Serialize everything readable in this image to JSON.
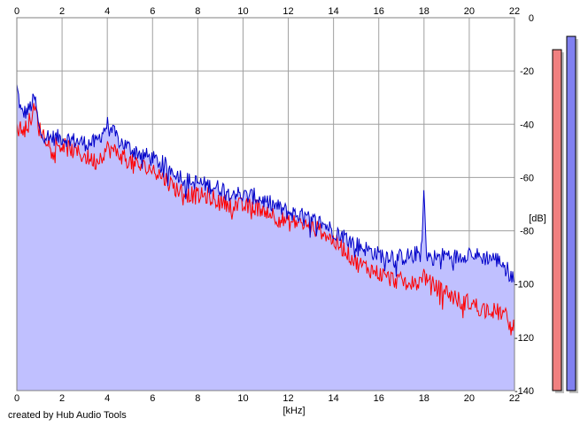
{
  "footer": {
    "credit": "created by Hub Audio Tools"
  },
  "colors": {
    "background": "#ffffff",
    "plot_fill": "#c0c0ff",
    "grid": "#a0a0a0",
    "series_red": "#ff0000",
    "series_blue": "#0000c8",
    "meter_left_fill": "#f08080",
    "meter_right_fill": "#8080f0",
    "meter_shadow": "#c0c0c0"
  },
  "chart_data": {
    "type": "line",
    "title": "",
    "xlabel": "[kHz]",
    "ylabel": "[dB]",
    "xlim": [
      0,
      22
    ],
    "ylim": [
      -140,
      0
    ],
    "x_ticks": [
      0,
      2,
      4,
      6,
      8,
      10,
      12,
      14,
      16,
      18,
      20,
      22
    ],
    "x_tick_labels": [
      "0",
      "2",
      "4",
      "6",
      "8",
      "10",
      "12",
      "14",
      "16",
      "18",
      "20",
      "22"
    ],
    "y_ticks": [
      0,
      -20,
      -40,
      -60,
      -80,
      -100,
      -120,
      -140
    ],
    "y_tick_labels": [
      "0",
      "-20",
      "-40",
      "-60",
      "-80",
      "-100",
      "-120",
      "-140"
    ],
    "grid": true,
    "legend": "none",
    "series": [
      {
        "color": "#ff0000",
        "x": [
          0,
          0.2,
          0.5,
          0.8,
          1.0,
          1.5,
          2.0,
          2.5,
          3.0,
          3.5,
          4.0,
          4.5,
          5.0,
          5.5,
          6.0,
          6.5,
          7.0,
          7.5,
          8.0,
          8.5,
          9.0,
          9.5,
          10.0,
          10.5,
          11.0,
          11.5,
          12.0,
          12.5,
          13.0,
          13.5,
          14.0,
          14.5,
          15.0,
          15.5,
          16.0,
          16.5,
          17.0,
          17.5,
          17.9,
          18.0,
          18.1,
          18.5,
          19.0,
          19.5,
          20.0,
          20.5,
          21.0,
          21.5,
          22.0
        ],
        "y": [
          -41,
          -42,
          -40,
          -34,
          -42,
          -47,
          -48,
          -50,
          -52,
          -54,
          -49,
          -51,
          -54,
          -56,
          -57,
          -60,
          -64,
          -66,
          -67,
          -67,
          -69,
          -70,
          -71,
          -71,
          -72,
          -75,
          -77,
          -77,
          -79,
          -80,
          -84,
          -87,
          -92,
          -94,
          -96,
          -98,
          -99,
          -100,
          -99,
          -94,
          -99,
          -101,
          -103,
          -106,
          -107,
          -109,
          -110,
          -111,
          -117
        ]
      },
      {
        "color": "#0000c8",
        "x": [
          0,
          0.2,
          0.5,
          0.8,
          1.0,
          1.5,
          2.0,
          2.5,
          3.0,
          3.5,
          4.0,
          4.5,
          5.0,
          5.5,
          6.0,
          6.5,
          7.0,
          7.5,
          8.0,
          8.5,
          9.0,
          9.5,
          10.0,
          10.5,
          11.0,
          11.5,
          12.0,
          12.5,
          13.0,
          13.5,
          14.0,
          14.5,
          15.0,
          15.5,
          16.0,
          16.5,
          17.0,
          17.5,
          17.9,
          18.0,
          18.1,
          18.5,
          19.0,
          19.5,
          20.0,
          20.5,
          21.0,
          21.5,
          22.0
        ],
        "y": [
          -26,
          -36,
          -35,
          -30,
          -43,
          -45,
          -45,
          -46,
          -47,
          -47,
          -40,
          -46,
          -49,
          -51,
          -53,
          -55,
          -58,
          -61,
          -62,
          -63,
          -64,
          -65,
          -67,
          -67,
          -69,
          -71,
          -73,
          -74,
          -76,
          -77,
          -80,
          -82,
          -85,
          -87,
          -89,
          -89,
          -90,
          -89,
          -88,
          -63,
          -89,
          -90,
          -89,
          -90,
          -88,
          -90,
          -90,
          -92,
          -99
        ]
      }
    ],
    "level_meters": [
      {
        "channel": "left",
        "color": "#f08080",
        "level_db": -12
      },
      {
        "channel": "right",
        "color": "#8080f0",
        "level_db": -7
      }
    ]
  }
}
